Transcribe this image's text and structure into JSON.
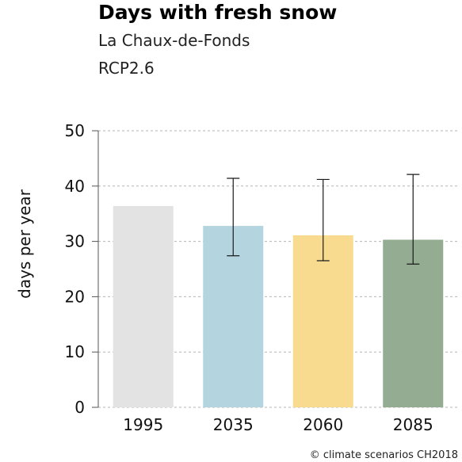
{
  "header": {
    "title": "Days with fresh snow",
    "subtitle": "La Chaux-de-Fonds",
    "scenario": "RCP2.6"
  },
  "credit": "© climate scenarios CH2018",
  "chart_data": {
    "type": "bar",
    "title": "Days with fresh snow",
    "subtitle": "La Chaux-de-Fonds",
    "scenario": "RCP2.6",
    "xlabel": "",
    "ylabel": "days per year",
    "ylim": [
      0,
      50
    ],
    "yticks": [
      0,
      10,
      20,
      30,
      40,
      50
    ],
    "grid": true,
    "categories": [
      "1995",
      "2035",
      "2060",
      "2085"
    ],
    "values": [
      36.4,
      32.8,
      31.1,
      30.3
    ],
    "error_low": [
      null,
      27.4,
      26.5,
      25.9
    ],
    "error_high": [
      null,
      41.4,
      41.2,
      42.1
    ],
    "colors": [
      "#e3e3e3",
      "#b4d5df",
      "#f9db8f",
      "#93ac92"
    ]
  }
}
